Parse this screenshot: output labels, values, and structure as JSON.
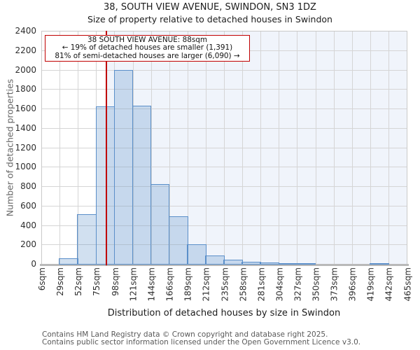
{
  "chart_data": {
    "type": "bar",
    "title": "38, SOUTH VIEW AVENUE, SWINDON, SN3 1DZ",
    "subtitle": "Size of property relative to detached houses in Swindon",
    "xlabel": "Distribution of detached houses by size in Swindon",
    "ylabel": "Number of detached properties",
    "x_tick_labels": [
      "6sqm",
      "29sqm",
      "52sqm",
      "75sqm",
      "98sqm",
      "121sqm",
      "144sqm",
      "166sqm",
      "189sqm",
      "212sqm",
      "235sqm",
      "258sqm",
      "281sqm",
      "304sqm",
      "327sqm",
      "350sqm",
      "373sqm",
      "396sqm",
      "419sqm",
      "442sqm",
      "465sqm"
    ],
    "bin_edges_sqm": [
      6,
      29,
      52,
      75,
      98,
      121,
      144,
      166,
      189,
      212,
      235,
      258,
      281,
      304,
      327,
      350,
      373,
      396,
      419,
      442,
      465
    ],
    "values": [
      0,
      55,
      510,
      1620,
      2000,
      1630,
      820,
      490,
      200,
      85,
      40,
      25,
      12,
      10,
      8,
      0,
      0,
      0,
      7,
      0
    ],
    "ylim": [
      0,
      2400
    ],
    "ytick_step": 200,
    "grid": true,
    "marker": {
      "value_sqm": 88,
      "shade_right_of_marker": true
    },
    "annotation": {
      "line1": "38 SOUTH VIEW AVENUE: 88sqm",
      "line2": "← 19% of detached houses are smaller (1,391)",
      "line3": "81% of semi-detached houses are larger (6,090) →"
    },
    "colors": {
      "bar_stroke": "#5b8fc9",
      "bar_fill_rgba": "rgba(91,143,201,0.28)",
      "marker_line": "#c00000",
      "annotation_border": "#c00000",
      "shade_background": "#f0f4fb",
      "gridline": "#d5d5d5",
      "axis_line": "#b9b9b9"
    }
  },
  "footer": {
    "line1": "Contains HM Land Registry data © Crown copyright and database right 2025.",
    "line2": "Contains public sector information licensed under the Open Government Licence v3.0."
  }
}
